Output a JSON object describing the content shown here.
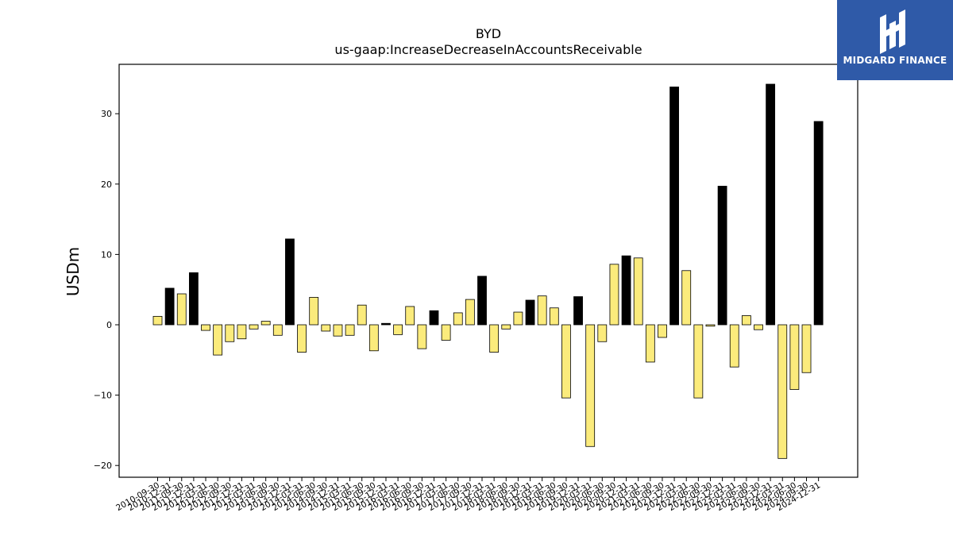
{
  "chart_data": {
    "type": "bar",
    "title": "BYD",
    "subtitle": "us-gaap:IncreaseDecreaseInAccountsReceivable",
    "ylabel": "USDm",
    "xlabel": "",
    "ylim": [
      -21,
      37
    ],
    "yticks": [
      -20,
      -10,
      0,
      10,
      20,
      30
    ],
    "grid": false,
    "legend": "none",
    "colors": {
      "positive_q4": "#000000",
      "other": "#fbeb7c",
      "edge": "#000000"
    },
    "categories": [
      "2010-09-30",
      "2010-12-31",
      "2011-09-30",
      "2011-12-31",
      "2012-03-31",
      "2012-06-30",
      "2012-09-30",
      "2012-12-31",
      "2013-03-31",
      "2013-06-30",
      "2013-09-30",
      "2013-12-31",
      "2014-03-31",
      "2014-06-30",
      "2014-09-30",
      "2014-12-31",
      "2015-03-31",
      "2015-06-30",
      "2015-09-30",
      "2015-12-31",
      "2016-03-31",
      "2016-06-30",
      "2016-09-30",
      "2016-12-31",
      "2017-03-31",
      "2017-06-30",
      "2017-09-30",
      "2017-12-31",
      "2018-03-31",
      "2018-06-30",
      "2018-09-30",
      "2018-12-31",
      "2019-03-31",
      "2019-06-30",
      "2019-09-30",
      "2019-12-31",
      "2020-03-31",
      "2020-06-30",
      "2020-09-30",
      "2020-12-31",
      "2021-03-31",
      "2021-06-30",
      "2021-09-30",
      "2021-12-31",
      "2022-03-31",
      "2022-06-30",
      "2022-09-30",
      "2022-12-31",
      "2023-03-31",
      "2023-06-30",
      "2023-09-30",
      "2023-12-31",
      "2024-03-31",
      "2024-06-30",
      "2024-09-30",
      "2024-12-31"
    ],
    "values": [
      1.2,
      5.2,
      4.4,
      7.4,
      -0.8,
      -4.3,
      -2.4,
      -2.0,
      -0.6,
      0.5,
      -1.5,
      12.2,
      -3.9,
      3.9,
      -0.9,
      -1.6,
      -1.5,
      2.8,
      -3.7,
      0.2,
      -1.4,
      2.6,
      -3.4,
      2.0,
      -2.2,
      1.7,
      3.6,
      6.9,
      -3.9,
      -0.6,
      1.8,
      3.5,
      4.1,
      2.4,
      -10.4,
      4.0,
      -17.3,
      -2.4,
      8.6,
      9.8,
      9.5,
      -5.3,
      -1.8,
      33.8,
      7.7,
      -10.4,
      -0.2,
      19.7,
      -6.0,
      1.3,
      -0.7,
      34.2,
      -19.0,
      -9.2,
      -6.8,
      28.9
    ]
  },
  "logo": {
    "text": "MIDGARD FINANCE",
    "icon": "midgard-logo-icon"
  }
}
